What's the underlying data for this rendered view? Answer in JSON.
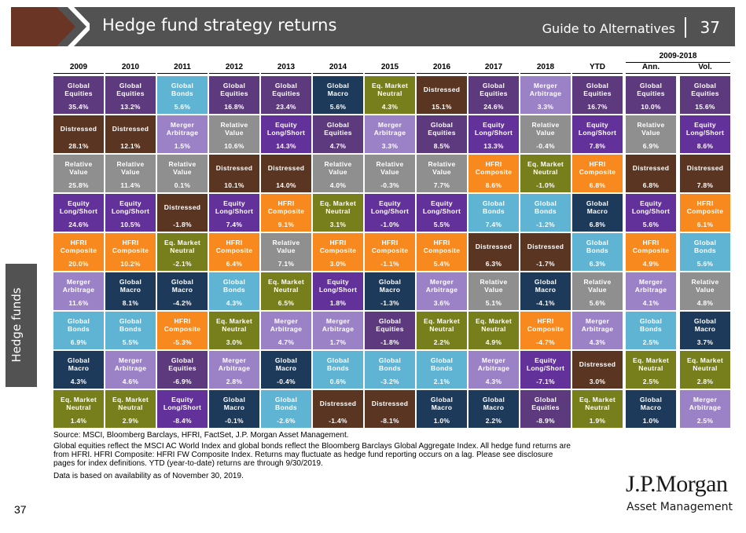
{
  "header": {
    "title": "Hedge fund strategy returns",
    "guide": "Guide to Alternatives",
    "page": "37"
  },
  "sidebar": {
    "label": "Hedge funds"
  },
  "page_number": "37",
  "period_header": "2009-2018",
  "colors": {
    "Global Equities": "#5d3a7e",
    "Distressed": "#5a3522",
    "Relative Value": "#8f8f8f",
    "Equity Long/Short": "#63319a",
    "HFRI Composite": "#f7891e",
    "Merger Arbitrage": "#9b82c6",
    "Global Bonds": "#5fb3d3",
    "Global Macro": "#1e3a5a",
    "Eq. Market Neutral": "#777e1c"
  },
  "chart_data": {
    "type": "table",
    "title": "Hedge fund strategy returns",
    "columns": [
      "2009",
      "2010",
      "2011",
      "2012",
      "2013",
      "2014",
      "2015",
      "2016",
      "2017",
      "2018",
      "YTD",
      "Ann.",
      "Vol."
    ],
    "cells": [
      [
        [
          "Global\nEquities",
          "35.4%"
        ],
        [
          "Distressed",
          "28.1%"
        ],
        [
          "Relative\nValue",
          "25.8%"
        ],
        [
          "Equity\nLong/Short",
          "24.6%"
        ],
        [
          "HFRI\nComposite",
          "20.0%"
        ],
        [
          "Merger\nArbitrage",
          "11.6%"
        ],
        [
          "Global\nBonds",
          "6.9%"
        ],
        [
          "Global\nMacro",
          "4.3%"
        ],
        [
          "Eq. Market\nNeutral",
          "1.4%"
        ]
      ],
      [
        [
          "Global\nEquities",
          "13.2%"
        ],
        [
          "Distressed",
          "12.1%"
        ],
        [
          "Relative\nValue",
          "11.4%"
        ],
        [
          "Equity\nLong/Short",
          "10.5%"
        ],
        [
          "HFRI\nComposite",
          "10.2%"
        ],
        [
          "Global\nMacro",
          "8.1%"
        ],
        [
          "Global\nBonds",
          "5.5%"
        ],
        [
          "Merger\nArbitrage",
          "4.6%"
        ],
        [
          "Eq. Market\nNeutral",
          "2.9%"
        ]
      ],
      [
        [
          "Global\nBonds",
          "5.6%"
        ],
        [
          "Merger\nArbitrage",
          "1.5%"
        ],
        [
          "Relative\nValue",
          "0.1%"
        ],
        [
          "Distressed",
          "-1.8%"
        ],
        [
          "Eq. Market\nNeutral",
          "-2.1%"
        ],
        [
          "Global\nMacro",
          "-4.2%"
        ],
        [
          "HFRI\nComposite",
          "-5.3%"
        ],
        [
          "Global\nEquities",
          "-6.9%"
        ],
        [
          "Equity\nLong/Short",
          "-8.4%"
        ]
      ],
      [
        [
          "Global\nEquities",
          "16.8%"
        ],
        [
          "Relative\nValue",
          "10.6%"
        ],
        [
          "Distressed",
          "10.1%"
        ],
        [
          "Equity\nLong/Short",
          "7.4%"
        ],
        [
          "HFRI\nComposite",
          "6.4%"
        ],
        [
          "Global\nBonds",
          "4.3%"
        ],
        [
          "Eq. Market\nNeutral",
          "3.0%"
        ],
        [
          "Merger\nArbitrage",
          "2.8%"
        ],
        [
          "Global\nMacro",
          "-0.1%"
        ]
      ],
      [
        [
          "Global\nEquities",
          "23.4%"
        ],
        [
          "Equity\nLong/Short",
          "14.3%"
        ],
        [
          "Distressed",
          "14.0%"
        ],
        [
          "HFRI\nComposite",
          "9.1%"
        ],
        [
          "Relative\nValue",
          "7.1%"
        ],
        [
          "Eq. Market\nNeutral",
          "6.5%"
        ],
        [
          "Merger\nArbitrage",
          "4.7%"
        ],
        [
          "Global\nMacro",
          "-0.4%"
        ],
        [
          "Global\nBonds",
          "-2.6%"
        ]
      ],
      [
        [
          "Global\nMacro",
          "5.6%"
        ],
        [
          "Global\nEquities",
          "4.7%"
        ],
        [
          "Relative\nValue",
          "4.0%"
        ],
        [
          "Eq. Market\nNeutral",
          "3.1%"
        ],
        [
          "HFRI\nComposite",
          "3.0%"
        ],
        [
          "Equity\nLong/Short",
          "1.8%"
        ],
        [
          "Merger\nArbitrage",
          "1.7%"
        ],
        [
          "Global\nBonds",
          "0.6%"
        ],
        [
          "Distressed",
          "-1.4%"
        ]
      ],
      [
        [
          "Eq. Market\nNeutral",
          "4.3%"
        ],
        [
          "Merger\nArbitrage",
          "3.3%"
        ],
        [
          "Relative\nValue",
          "-0.3%"
        ],
        [
          "Equity\nLong/Short",
          "-1.0%"
        ],
        [
          "HFRI\nComposite",
          "-1.1%"
        ],
        [
          "Global\nMacro",
          "-1.3%"
        ],
        [
          "Global\nEquities",
          "-1.8%"
        ],
        [
          "Global\nBonds",
          "-3.2%"
        ],
        [
          "Distressed",
          "-8.1%"
        ]
      ],
      [
        [
          "Distressed",
          "15.1%"
        ],
        [
          "Global\nEquities",
          "8.5%"
        ],
        [
          "Relative\nValue",
          "7.7%"
        ],
        [
          "Equity\nLong/Short",
          "5.5%"
        ],
        [
          "HFRI\nComposite",
          "5.4%"
        ],
        [
          "Merger\nArbitrage",
          "3.6%"
        ],
        [
          "Eq. Market\nNeutral",
          "2.2%"
        ],
        [
          "Global\nBonds",
          "2.1%"
        ],
        [
          "Global\nMacro",
          "1.0%"
        ]
      ],
      [
        [
          "Global\nEquities",
          "24.6%"
        ],
        [
          "Equity\nLong/Short",
          "13.3%"
        ],
        [
          "HFRI\nComposite",
          "8.6%"
        ],
        [
          "Global\nBonds",
          "7.4%"
        ],
        [
          "Distressed",
          "6.3%"
        ],
        [
          "Relative\nValue",
          "5.1%"
        ],
        [
          "Eq. Market\nNeutral",
          "4.9%"
        ],
        [
          "Merger\nArbitrage",
          "4.3%"
        ],
        [
          "Global\nMacro",
          "2.2%"
        ]
      ],
      [
        [
          "Merger\nArbitrage",
          "3.3%"
        ],
        [
          "Relative\nValue",
          "-0.4%"
        ],
        [
          "Eq. Market\nNeutral",
          "-1.0%"
        ],
        [
          "Global\nBonds",
          "-1.2%"
        ],
        [
          "Distressed",
          "-1.7%"
        ],
        [
          "Global\nMacro",
          "-4.1%"
        ],
        [
          "HFRI\nComposite",
          "-4.7%"
        ],
        [
          "Equity\nLong/Short",
          "-7.1%"
        ],
        [
          "Global\nEquities",
          "-8.9%"
        ]
      ],
      [
        [
          "Global\nEquities",
          "16.7%"
        ],
        [
          "Equity\nLong/Short",
          "7.8%"
        ],
        [
          "HFRI\nComposite",
          "6.8%"
        ],
        [
          "Global\nMacro",
          "6.8%"
        ],
        [
          "Global\nBonds",
          "6.3%"
        ],
        [
          "Relative\nValue",
          "5.6%"
        ],
        [
          "Merger\nArbitrage",
          "4.3%"
        ],
        [
          "Distressed",
          "3.0%"
        ],
        [
          "Eq. Market\nNeutral",
          "1.9%"
        ]
      ],
      [
        [
          "Global\nEquities",
          "10.0%"
        ],
        [
          "Relative\nValue",
          "6.9%"
        ],
        [
          "Distressed",
          "6.8%"
        ],
        [
          "Equity\nLong/Short",
          "5.6%"
        ],
        [
          "HFRI\nComposite",
          "4.9%"
        ],
        [
          "Merger\nArbitrage",
          "4.1%"
        ],
        [
          "Global\nBonds",
          "2.5%"
        ],
        [
          "Eq. Market\nNeutral",
          "2.5%"
        ],
        [
          "Global\nMacro",
          "1.0%"
        ]
      ],
      [
        [
          "Global\nEquities",
          "15.6%"
        ],
        [
          "Equity\nLong/Short",
          "8.6%"
        ],
        [
          "Distressed",
          "7.8%"
        ],
        [
          "HFRI\nComposite",
          "6.1%"
        ],
        [
          "Global\nBonds",
          "5.6%"
        ],
        [
          "Relative\nValue",
          "4.8%"
        ],
        [
          "Global\nMacro",
          "3.7%"
        ],
        [
          "Eq. Market\nNeutral",
          "2.8%"
        ],
        [
          "Merger\nArbitrage",
          "2.5%"
        ]
      ]
    ]
  },
  "footnotes": {
    "source": "Source: MSCI, Bloomberg Barclays, HFRI, FactSet, J.P. Morgan Asset Management.",
    "note1_l1": "Global equities reflect the MSCI AC World Index and global bonds reflect the Bloomberg Barclays Global Aggregate Index. All hedge fund returns are",
    "note1_l2": "from HFRI. HFRI Composite: HFRI FW Composite Index. Returns may fluctuate as hedge fund reporting occurs on a lag. Please see disclosure",
    "note1_l3": "pages for index definitions. YTD (year-to-date) returns are through 9/30/2019.",
    "note2": "Data is based on availability as of November 30, 2019."
  },
  "logo": {
    "line1": "J.P.Morgan",
    "line2": "Asset Management"
  }
}
